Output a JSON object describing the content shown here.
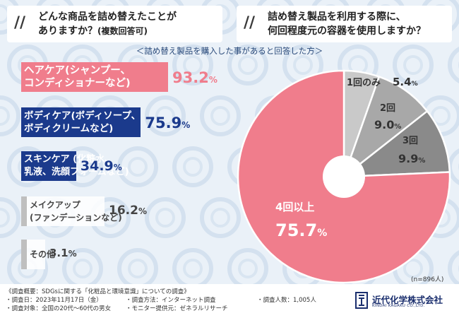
{
  "header_left": {
    "line1": "どんな商品を詰め替えたことが",
    "line2": "ありますか？",
    "line2_small": "(複数回答可)"
  },
  "header_right": {
    "line1": "詰め替え製品を利用する際に、",
    "line2": "何回程度元の容器を使用しますか？"
  },
  "subtitle": "＜詰め替え製品を購入した事があると回答した方＞",
  "sample_note": "(n=896人)",
  "colors": {
    "pink": "#f07d8c",
    "navy": "#1b3a8c",
    "gray": "#a6a6a6",
    "pie_light": "#c9c9c9",
    "pie_mid": "#a8a8a8",
    "pie_dark": "#8a8a8a"
  },
  "chart_data": [
    {
      "type": "bar",
      "categories": [
        "ヘアケア(シャンプー、コンディショナーなど)",
        "ボディケア(ボディソープ、ボディクリームなど)",
        "スキンケア(化粧水、乳液、洗顔フォームなど)",
        "メイクアップ(ファンデーションなど)",
        "その他"
      ],
      "label_lines": [
        [
          "ヘアケア(シャンプー、",
          "コンディショナーなど)"
        ],
        [
          "ボディケア(ボディソープ、",
          "ボディクリームなど)"
        ],
        [
          "スキンケア (化粧水、",
          "乳液、洗顔フォームなど)"
        ],
        [
          "メイクアップ",
          "(ファンデーションなど)"
        ],
        [
          "その他"
        ]
      ],
      "values": [
        93.2,
        75.9,
        34.9,
        16.2,
        3.1
      ],
      "value_labels": [
        "93.2",
        "75.9",
        "34.9",
        "16.2",
        "3.1"
      ],
      "unit": "%",
      "xlim": [
        0,
        100
      ]
    },
    {
      "type": "pie",
      "categories": [
        "1回のみ",
        "2回",
        "3回",
        "4回以上"
      ],
      "values": [
        5.4,
        9.0,
        9.9,
        75.7
      ],
      "value_labels": [
        "5.4",
        "9.0",
        "9.9",
        "75.7"
      ],
      "unit": "%"
    }
  ],
  "footer": {
    "survey_title": "《調査概要：SDGsに関する「化粧品と環境意識」についての調査》",
    "date": "・調査日：2023年11月17日（金）",
    "method": "・調査方法：インターネット調査",
    "count": "・調査人数：1,005人",
    "target": "・調査対象：全国の20代～60代の男女",
    "provider": "・モニター提供元：ゼネラルリサーチ",
    "company": "近代化学株式会社",
    "company_en": "KINDAI KAGAKU CO.,LTD."
  }
}
